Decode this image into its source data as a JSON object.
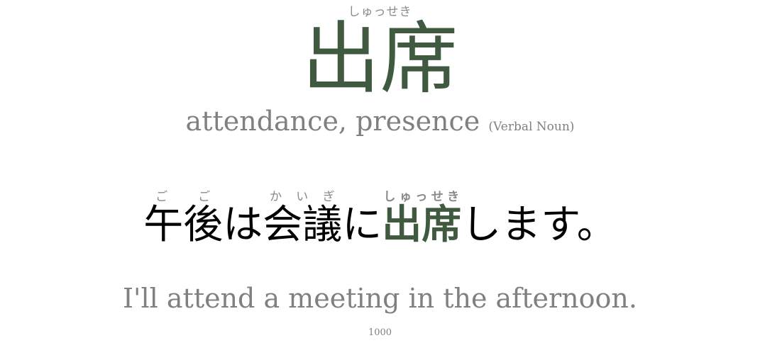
{
  "word": {
    "reading": "しゅっせき",
    "kanji": "出席",
    "meaning": "attendance, presence",
    "part_of_speech": "(Verbal Noun)"
  },
  "sentence": {
    "segments": [
      {
        "text": "午後",
        "reading": "ごご"
      },
      {
        "text": "は"
      },
      {
        "text": "会議",
        "reading": "かいぎ"
      },
      {
        "text": "に"
      },
      {
        "text": "出席",
        "reading": "しゅっせき",
        "highlight": true
      },
      {
        "text": "します。"
      }
    ],
    "seg0_text": "午後",
    "seg0_reading": "ごご",
    "seg1_text": "は",
    "seg2_text": "会議",
    "seg2_reading": "かいぎ",
    "seg3_text": "に",
    "seg4_text": "出席",
    "seg4_reading": "しゅっせき",
    "seg5_text": "します。",
    "translation": "I'll attend a meeting in the afternoon."
  },
  "card_number": "1000",
  "colors": {
    "accent": "#3f5a3f",
    "muted": "#808080",
    "text": "#000000"
  }
}
